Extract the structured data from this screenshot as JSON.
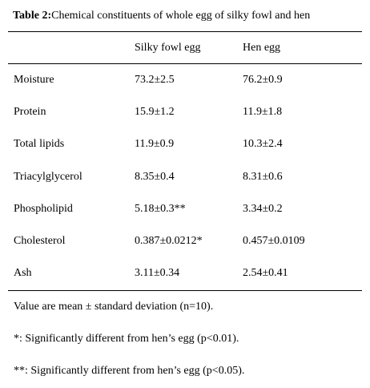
{
  "header": {
    "label": "Table 2:",
    "title": "Chemical constituents of whole egg of silky fowl and hen"
  },
  "table": {
    "columns": [
      "Silky fowl egg",
      "Hen egg"
    ],
    "rows": [
      [
        "Moisture",
        "73.2±2.5",
        "76.2±0.9"
      ],
      [
        "Protein",
        "15.9±1.2",
        "11.9±1.8"
      ],
      [
        "Total lipids",
        "11.9±0.9",
        "10.3±2.4"
      ],
      [
        "Triacylglycerol",
        "8.35±0.4",
        "8.31±0.6"
      ],
      [
        "Phospholipid",
        "5.18±0.3**",
        "3.34±0.2"
      ],
      [
        "Cholesterol",
        "0.387±0.0212*",
        "0.457±0.0109"
      ],
      [
        "Ash",
        "3.11±0.34",
        "2.54±0.41"
      ]
    ]
  },
  "notes": [
    "Value are mean ± standard deviation (n=10).",
    "*: Significantly different from hen’s egg (p<0.01).",
    "**: Significantly different from hen’s egg (p<0.05)."
  ]
}
